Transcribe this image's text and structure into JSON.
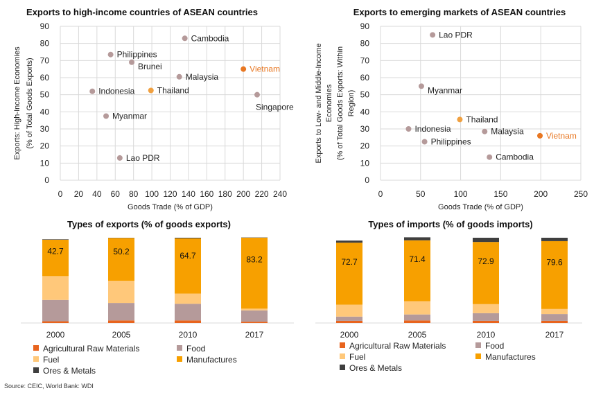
{
  "source": "Source: CEIC, World Bank: WDI",
  "colors": {
    "point": "#b59a9a",
    "point_highlight": "#e87722",
    "point_thailand": "#f0a040",
    "grid": "#d9d9d9",
    "agri": "#e8641e",
    "food": "#b59a9a",
    "fuel": "#ffc87a",
    "manu": "#f7a000",
    "ores": "#3f3f3f"
  },
  "chart_data": [
    {
      "type": "scatter",
      "title": "Exports to high-income countries of ASEAN countries",
      "xlabel": "Goods Trade (% of GDP)",
      "ylabel_lines": [
        "Exports: High-Income Economies",
        "(% of Total Goods Exports)"
      ],
      "xlim": [
        0,
        240
      ],
      "ylim": [
        0,
        90
      ],
      "xticks": [
        0,
        20,
        40,
        60,
        80,
        100,
        120,
        140,
        160,
        180,
        200,
        220,
        240
      ],
      "yticks": [
        0,
        10,
        20,
        30,
        40,
        50,
        60,
        70,
        80,
        90
      ],
      "points": [
        {
          "label": "Cambodia",
          "x": 136,
          "y": 83,
          "lpos": "right"
        },
        {
          "label": "Philippines",
          "x": 55,
          "y": 73.5,
          "lpos": "right"
        },
        {
          "label": "Brunei",
          "x": 78,
          "y": 69,
          "lpos": "right-below"
        },
        {
          "label": "Vietnam",
          "x": 200,
          "y": 65,
          "lpos": "right",
          "highlight": true
        },
        {
          "label": "Malaysia",
          "x": 130,
          "y": 60.5,
          "lpos": "right"
        },
        {
          "label": "Indonesia",
          "x": 35,
          "y": 52,
          "lpos": "right"
        },
        {
          "label": "Thailand",
          "x": 99,
          "y": 52.5,
          "lpos": "right",
          "thai": true
        },
        {
          "label": "Singapore",
          "x": 215,
          "y": 50,
          "lpos": "below"
        },
        {
          "label": "Myanmar",
          "x": 50,
          "y": 37.5,
          "lpos": "right"
        },
        {
          "label": "Lao PDR",
          "x": 65,
          "y": 13,
          "lpos": "right"
        }
      ]
    },
    {
      "type": "scatter",
      "title": "Exports to emerging markets of ASEAN countries",
      "xlabel": "Goods Trade (% of GDP)",
      "ylabel_lines": [
        "Exports to Low- and Middle-Income",
        "Economies",
        "(% of Total Goods Exports: Within",
        "Region)"
      ],
      "xlim": [
        0,
        250
      ],
      "ylim": [
        0,
        90
      ],
      "xticks": [
        0,
        50,
        100,
        150,
        200,
        250
      ],
      "yticks": [
        0,
        10,
        20,
        30,
        40,
        50,
        60,
        70,
        80,
        90
      ],
      "points": [
        {
          "label": "Lao PDR",
          "x": 65,
          "y": 85,
          "lpos": "right"
        },
        {
          "label": "Myanmar",
          "x": 51,
          "y": 55,
          "lpos": "right-below"
        },
        {
          "label": "Thailand",
          "x": 99,
          "y": 35.5,
          "lpos": "right",
          "thai": true
        },
        {
          "label": "Indonesia",
          "x": 35,
          "y": 30,
          "lpos": "right"
        },
        {
          "label": "Malaysia",
          "x": 130,
          "y": 28.5,
          "lpos": "right"
        },
        {
          "label": "Vietnam",
          "x": 199,
          "y": 26,
          "lpos": "right",
          "highlight": true
        },
        {
          "label": "Philippines",
          "x": 55,
          "y": 22.5,
          "lpos": "right"
        },
        {
          "label": "Cambodia",
          "x": 136,
          "y": 13.5,
          "lpos": "right"
        }
      ]
    },
    {
      "type": "bar",
      "stacked": true,
      "title": "Types of exports (% of goods exports)",
      "categories": [
        "2000",
        "2005",
        "2010",
        "2017"
      ],
      "ylim": [
        0,
        100
      ],
      "series": [
        {
          "name": "Agricultural Raw Materials",
          "key": "agri",
          "values": [
            2,
            3,
            3,
            1.5
          ]
        },
        {
          "name": "Food",
          "key": "food",
          "values": [
            25,
            20.5,
            19.5,
            13.3
          ]
        },
        {
          "name": "Fuel",
          "key": "fuel",
          "values": [
            28,
            26,
            12,
            2
          ]
        },
        {
          "name": "Manufactures",
          "key": "manu",
          "values": [
            42.7,
            50.2,
            64.7,
            83.2
          ]
        },
        {
          "name": "Ores & Metals",
          "key": "ores",
          "values": [
            0.5,
            0.3,
            0.8,
            0.3
          ]
        }
      ],
      "labels": [
        "42.7",
        "50.2",
        "64.7",
        "83.2"
      ]
    },
    {
      "type": "bar",
      "stacked": true,
      "title": "Types of imports (% of goods imports)",
      "categories": [
        "2000",
        "2005",
        "2010",
        "2017"
      ],
      "ylim": [
        0,
        100
      ],
      "series": [
        {
          "name": "Agricultural Raw Materials",
          "key": "agri",
          "values": [
            2.5,
            3,
            2.5,
            2.5
          ]
        },
        {
          "name": "Food",
          "key": "food",
          "values": [
            5,
            7,
            9,
            8
          ]
        },
        {
          "name": "Fuel",
          "key": "fuel",
          "values": [
            14,
            15.6,
            10.6,
            5.9
          ]
        },
        {
          "name": "Manufactures",
          "key": "manu",
          "values": [
            72.7,
            71.4,
            72.9,
            79.6
          ]
        },
        {
          "name": "Ores & Metals",
          "key": "ores",
          "values": [
            2.5,
            3.5,
            5,
            4
          ]
        }
      ],
      "labels": [
        "72.7",
        "71.4",
        "72.9",
        "79.6"
      ]
    }
  ]
}
